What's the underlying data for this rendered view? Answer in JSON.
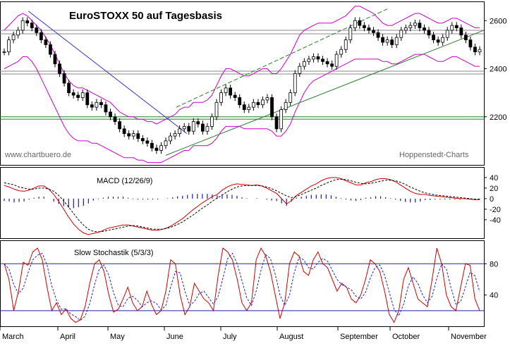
{
  "chart_data": [
    {
      "type": "candlestick",
      "title": "EuroSTOXX 50 auf Tagesbasis",
      "watermark_left": "www.chartbuero.de",
      "watermark_right": "Hoppenstedt-Charts",
      "y_ticks": [
        "2600",
        "2400",
        "2200"
      ],
      "y_tick_values": [
        2600,
        2400,
        2200
      ],
      "ylim": [
        2000,
        2680
      ],
      "x_months": [
        "March",
        "April",
        "May",
        "June",
        "July",
        "August",
        "September",
        "October",
        "November"
      ],
      "horizontal_levels": [
        2560,
        2545,
        2390,
        2378,
        2200,
        2190
      ],
      "close_approx": [
        2470,
        2520,
        2540,
        2560,
        2600,
        2590,
        2570,
        2550,
        2520,
        2500,
        2460,
        2420,
        2380,
        2340,
        2300,
        2290,
        2280,
        2300,
        2250,
        2240,
        2260,
        2250,
        2220,
        2200,
        2180,
        2150,
        2130,
        2120,
        2130,
        2110,
        2100,
        2090,
        2070,
        2060,
        2080,
        2100,
        2120,
        2130,
        2150,
        2160,
        2140,
        2180,
        2170,
        2140,
        2160,
        2200,
        2260,
        2300,
        2320,
        2290,
        2280,
        2250,
        2230,
        2240,
        2260,
        2250,
        2270,
        2280,
        2200,
        2150,
        2230,
        2260,
        2300,
        2380,
        2410,
        2430,
        2440,
        2450,
        2440,
        2430,
        2420,
        2410,
        2460,
        2480,
        2520,
        2570,
        2600,
        2580,
        2570,
        2560,
        2550,
        2530,
        2510,
        2520,
        2500,
        2530,
        2560,
        2570,
        2580,
        2590,
        2570,
        2560,
        2540,
        2520,
        2510,
        2530,
        2560,
        2580,
        2570,
        2540,
        2520,
        2490,
        2470,
        2480
      ],
      "bollinger_upper_approx": [
        2560,
        2580,
        2600,
        2620,
        2630,
        2620,
        2600,
        2580,
        2560,
        2530,
        2500,
        2460,
        2420,
        2380,
        2350,
        2330,
        2320,
        2320,
        2310,
        2300,
        2290,
        2280,
        2270,
        2260,
        2240,
        2220,
        2210,
        2200,
        2200,
        2190,
        2190,
        2180,
        2180,
        2170,
        2180,
        2190,
        2200,
        2210,
        2230,
        2240,
        2240,
        2260,
        2260,
        2260,
        2270,
        2290,
        2330,
        2370,
        2400,
        2400,
        2390,
        2380,
        2370,
        2370,
        2380,
        2390,
        2400,
        2400,
        2380,
        2380,
        2400,
        2430,
        2460,
        2500,
        2540,
        2560,
        2570,
        2580,
        2590,
        2590,
        2590,
        2590,
        2600,
        2610,
        2620,
        2640,
        2660,
        2660,
        2650,
        2640,
        2630,
        2610,
        2590,
        2580,
        2580,
        2590,
        2600,
        2610,
        2620,
        2630,
        2630,
        2620,
        2610,
        2600,
        2590,
        2590,
        2600,
        2610,
        2610,
        2600,
        2590,
        2580,
        2570,
        2570
      ],
      "bollinger_lower_approx": [
        2400,
        2410,
        2420,
        2430,
        2450,
        2450,
        2430,
        2400,
        2360,
        2320,
        2280,
        2240,
        2200,
        2160,
        2130,
        2110,
        2100,
        2100,
        2100,
        2090,
        2090,
        2080,
        2070,
        2060,
        2050,
        2040,
        2030,
        2030,
        2030,
        2020,
        2020,
        2010,
        2010,
        2010,
        2010,
        2020,
        2030,
        2040,
        2050,
        2060,
        2060,
        2080,
        2080,
        2080,
        2080,
        2090,
        2110,
        2140,
        2160,
        2160,
        2160,
        2160,
        2150,
        2150,
        2150,
        2150,
        2150,
        2150,
        2140,
        2120,
        2120,
        2140,
        2170,
        2220,
        2260,
        2300,
        2330,
        2350,
        2360,
        2370,
        2380,
        2390,
        2400,
        2410,
        2420,
        2430,
        2440,
        2440,
        2440,
        2440,
        2440,
        2440,
        2430,
        2430,
        2420,
        2420,
        2430,
        2440,
        2450,
        2460,
        2460,
        2460,
        2450,
        2440,
        2430,
        2430,
        2440,
        2450,
        2450,
        2440,
        2430,
        2420,
        2410,
        2410
      ]
    },
    {
      "type": "line",
      "title": "MACD (12/26/9)",
      "y_ticks": [
        "40",
        "20",
        "0",
        "-20",
        "-40"
      ],
      "y_tick_values": [
        40,
        20,
        0,
        -20,
        -40
      ],
      "ylim": [
        -75,
        60
      ],
      "macd_approx": [
        25,
        22,
        18,
        15,
        14,
        16,
        20,
        24,
        24,
        18,
        8,
        -5,
        -20,
        -35,
        -48,
        -58,
        -65,
        -68,
        -66,
        -64,
        -60,
        -56,
        -54,
        -52,
        -50,
        -50,
        -52,
        -54,
        -56,
        -58,
        -60,
        -60,
        -58,
        -55,
        -50,
        -44,
        -38,
        -30,
        -22,
        -15,
        -8,
        -2,
        4,
        8,
        16,
        22,
        26,
        28,
        27,
        26,
        25,
        26,
        24,
        20,
        15,
        10,
        0,
        -10,
        -4,
        6,
        12,
        18,
        24,
        28,
        34,
        38,
        40,
        40,
        38,
        34,
        30,
        26,
        26,
        30,
        32,
        36,
        38,
        38,
        36,
        32,
        26,
        20,
        14,
        10,
        8,
        8,
        6,
        5,
        4,
        3,
        2,
        1,
        0,
        0,
        -1,
        -2,
        -2
      ],
      "signal_approx": [
        30,
        28,
        26,
        22,
        20,
        18,
        18,
        20,
        20,
        18,
        14,
        6,
        -4,
        -16,
        -28,
        -40,
        -50,
        -58,
        -62,
        -63,
        -62,
        -60,
        -58,
        -56,
        -54,
        -52,
        -51,
        -52,
        -54,
        -56,
        -58,
        -58,
        -58,
        -56,
        -53,
        -49,
        -44,
        -38,
        -32,
        -25,
        -18,
        -12,
        -5,
        1,
        7,
        13,
        18,
        22,
        24,
        25,
        25,
        25,
        24,
        22,
        19,
        15,
        10,
        5,
        2,
        4,
        8,
        12,
        16,
        20,
        25,
        29,
        33,
        36,
        37,
        36,
        34,
        31,
        29,
        28,
        29,
        31,
        33,
        35,
        35,
        34,
        31,
        27,
        22,
        18,
        14,
        11,
        9,
        7,
        6,
        5,
        4,
        3,
        2,
        1,
        0,
        -1,
        -1
      ]
    },
    {
      "type": "line",
      "title": "Slow Stochastik (5/3/3)",
      "y_ticks": [
        "80",
        "40"
      ],
      "y_tick_values": [
        80,
        40
      ],
      "ylim": [
        0,
        110
      ],
      "reference_levels": [
        80,
        20
      ],
      "k_approx": [
        80,
        60,
        20,
        45,
        82,
        78,
        95,
        100,
        85,
        50,
        20,
        30,
        15,
        22,
        10,
        5,
        8,
        25,
        55,
        80,
        85,
        70,
        40,
        18,
        22,
        35,
        50,
        30,
        20,
        25,
        45,
        28,
        15,
        20,
        45,
        85,
        80,
        40,
        15,
        25,
        55,
        45,
        35,
        30,
        20,
        65,
        100,
        95,
        85,
        60,
        30,
        20,
        30,
        85,
        100,
        90,
        70,
        40,
        10,
        30,
        80,
        95,
        90,
        70,
        65,
        85,
        95,
        80,
        75,
        60,
        45,
        55,
        50,
        35,
        30,
        40,
        60,
        85,
        80,
        70,
        45,
        15,
        5,
        20,
        60,
        75,
        55,
        35,
        30,
        25,
        60,
        100,
        80,
        40,
        25,
        20,
        50,
        80,
        78,
        35,
        20
      ]
    }
  ]
}
